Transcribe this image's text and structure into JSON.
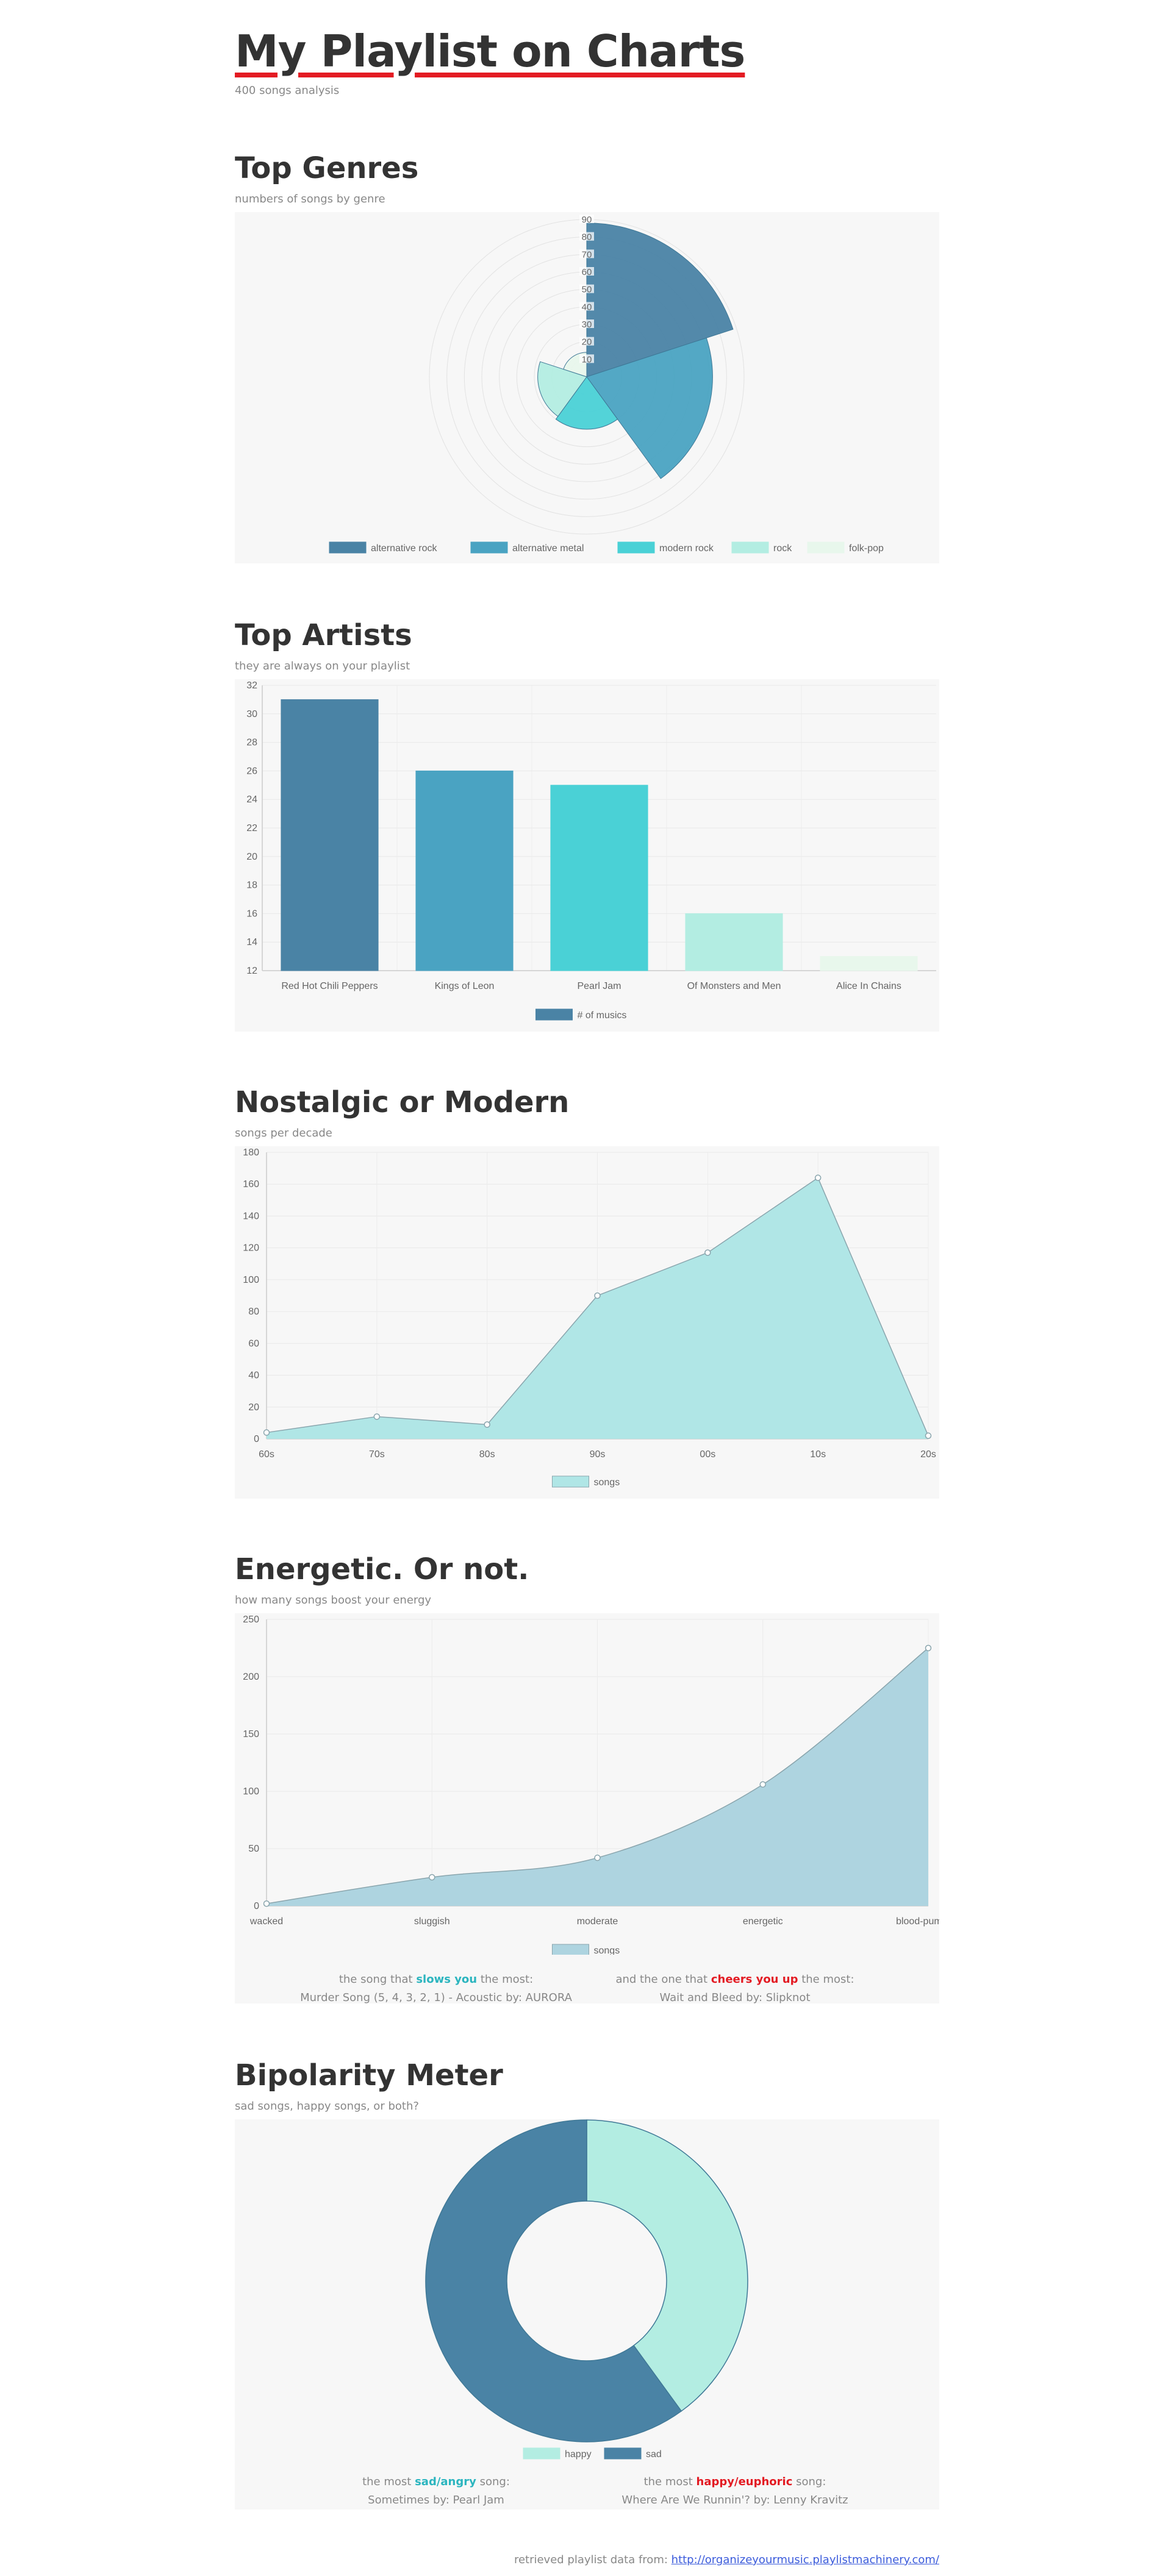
{
  "header": {
    "title": "My Playlist on Charts",
    "subtitle": "400 songs analysis"
  },
  "sections": {
    "genres": {
      "title": "Top Genres",
      "subtitle": "numbers of songs by genre"
    },
    "artists": {
      "title": "Top Artists",
      "subtitle": "they are always on your playlist"
    },
    "decades": {
      "title": "Nostalgic or Modern",
      "subtitle": "songs per decade"
    },
    "energy": {
      "title": "Energetic. Or not.",
      "subtitle": "how many songs boost your energy"
    },
    "bipolar": {
      "title": "Bipolarity Meter",
      "subtitle": "sad songs, happy songs, or both?"
    }
  },
  "energy_info": {
    "slow": {
      "prefix": "the song that",
      "highlight": "slows you",
      "suffix": "the most:",
      "song": "Murder Song (5, 4, 3, 2, 1) - Acoustic by: AURORA",
      "color": "#2bb5bf"
    },
    "fast": {
      "prefix": "and the one that",
      "highlight": "cheers you up",
      "suffix": "the most:",
      "song": "Wait and Bleed by: Slipknot",
      "color": "#e31b23"
    }
  },
  "mood_info": {
    "sad": {
      "prefix": "the most",
      "highlight": "sad/angry",
      "suffix": "song:",
      "song": "Sometimes by: Pearl Jam",
      "color": "#2bb5bf"
    },
    "happy": {
      "prefix": "the most",
      "highlight": "happy/euphoric",
      "suffix": "song:",
      "song": "Where Are We Runnin'? by: Lenny Kravitz",
      "color": "#e31b23"
    }
  },
  "footer": {
    "text": "retrieved playlist data from:",
    "link": "http://organizeyourmusic.playlistmachinery.com/"
  },
  "chart_data": [
    {
      "id": "genres",
      "type": "polarArea",
      "categories": [
        "alternative rock",
        "alternative metal",
        "modern rock",
        "rock",
        "folk-pop"
      ],
      "values": [
        88,
        72,
        30,
        28,
        14
      ],
      "colors": [
        "#4a83a5",
        "#4aa3c2",
        "#4ad1d6",
        "#b3ede2",
        "#e8f7ec"
      ],
      "rlim": [
        0,
        90
      ],
      "ticks": [
        "10",
        "20",
        "30",
        "40",
        "50",
        "60",
        "70",
        "80",
        "90"
      ],
      "legend": "bottom"
    },
    {
      "id": "artists",
      "type": "bar",
      "categories": [
        "Red Hot Chili Peppers",
        "Kings of Leon",
        "Pearl Jam",
        "Of Monsters and Men",
        "Alice In Chains"
      ],
      "series": [
        {
          "name": "# of musics",
          "values": [
            31,
            26,
            25,
            16,
            13
          ]
        }
      ],
      "colors": [
        "#4a83a5",
        "#4aa3c2",
        "#4ad1d6",
        "#b3ede2",
        "#e8f7ec"
      ],
      "ylim": [
        12,
        32
      ],
      "yticks": [
        "12",
        "14",
        "16",
        "18",
        "20",
        "22",
        "24",
        "26",
        "28",
        "30",
        "32"
      ],
      "grid": true,
      "legend": "bottom"
    },
    {
      "id": "decades",
      "type": "area",
      "categories": [
        "60s",
        "70s",
        "80s",
        "90s",
        "00s",
        "10s",
        "20s"
      ],
      "series": [
        {
          "name": "songs",
          "values": [
            4,
            14,
            9,
            90,
            117,
            164,
            2
          ]
        }
      ],
      "color": "#b0e6e6",
      "ylim": [
        0,
        180
      ],
      "yticks": [
        "0",
        "20",
        "40",
        "60",
        "80",
        "100",
        "120",
        "140",
        "160",
        "180"
      ],
      "grid": true,
      "legend": "bottom"
    },
    {
      "id": "energy",
      "type": "area",
      "categories": [
        "wacked",
        "sluggish",
        "moderate",
        "energetic",
        "blood-pumping"
      ],
      "series": [
        {
          "name": "songs",
          "values": [
            2,
            25,
            42,
            106,
            225
          ]
        }
      ],
      "color": "#aed4e0",
      "ylim": [
        0,
        250
      ],
      "yticks": [
        "0",
        "50",
        "100",
        "150",
        "200",
        "250"
      ],
      "grid": true,
      "legend": "bottom"
    },
    {
      "id": "bipolar",
      "type": "doughnut",
      "categories": [
        "happy",
        "sad"
      ],
      "values": [
        40,
        60
      ],
      "colors": [
        "#b3ede2",
        "#4a83a5"
      ],
      "legend": "bottom"
    }
  ]
}
